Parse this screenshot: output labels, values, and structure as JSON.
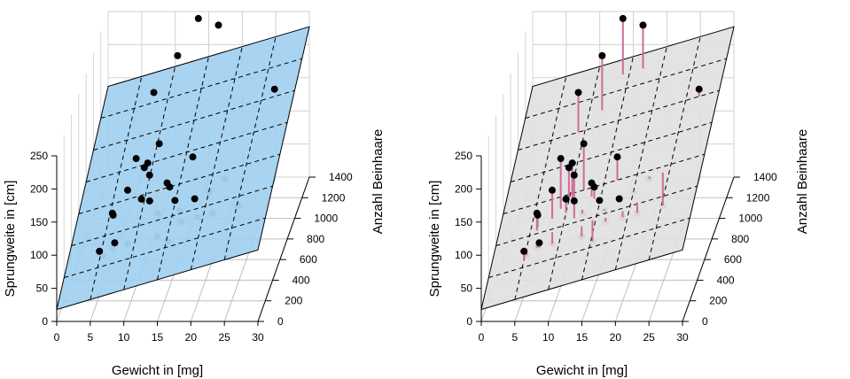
{
  "chart_data": [
    {
      "type": "scatter",
      "subtype": "3d-scatter-with-regression-plane",
      "panel": "left",
      "xlabel": "Gewicht in [mg]",
      "ylabel": "Anzahl Beinhaare",
      "zlabel": "Sprungweite in [cm]",
      "xticks": [
        "0",
        "5",
        "10",
        "15",
        "20",
        "25",
        "30"
      ],
      "yticks": [
        "0",
        "200",
        "400",
        "600",
        "800",
        "1000",
        "1200",
        "1400"
      ],
      "zticks": [
        "0",
        "50",
        "100",
        "150",
        "200",
        "250"
      ],
      "xlim": [
        0,
        30
      ],
      "ylim": [
        0,
        1400
      ],
      "zlim": [
        0,
        250
      ],
      "plane_color": "#9fcff0",
      "point_color_front": "#000000",
      "point_color_behind": "#8c8c8c",
      "show_residuals": false,
      "grid": true
    },
    {
      "type": "scatter",
      "subtype": "3d-scatter-with-regression-plane",
      "panel": "right",
      "xlabel": "Gewicht in [mg]",
      "ylabel": "Anzahl Beinhaare",
      "zlabel": "Sprungweite in [cm]",
      "xticks": [
        "0",
        "5",
        "10",
        "15",
        "20",
        "25",
        "30"
      ],
      "yticks": [
        "0",
        "200",
        "400",
        "600",
        "800",
        "1000",
        "1200",
        "1400"
      ],
      "zticks": [
        "0",
        "50",
        "100",
        "150",
        "200",
        "250"
      ],
      "xlim": [
        0,
        30
      ],
      "ylim": [
        0,
        1400
      ],
      "zlim": [
        0,
        250
      ],
      "plane_color": "#e0e0e0",
      "point_color_front": "#000000",
      "point_color_behind": "#8c8c8c",
      "residual_color": "#d16a9c",
      "show_residuals": true,
      "grid": true
    }
  ]
}
